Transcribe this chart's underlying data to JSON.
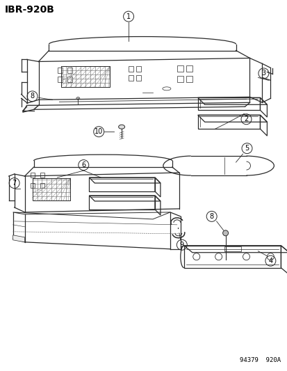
{
  "title_code": "IBR-920B",
  "footer_code": "94379  920A",
  "background_color": "#ffffff",
  "line_color": "#2a2a2a",
  "text_color": "#000000",
  "title_fontsize": 10,
  "label_fontsize": 7.5,
  "footer_fontsize": 6.5,
  "fig_width": 4.14,
  "fig_height": 5.33,
  "dpi": 100
}
